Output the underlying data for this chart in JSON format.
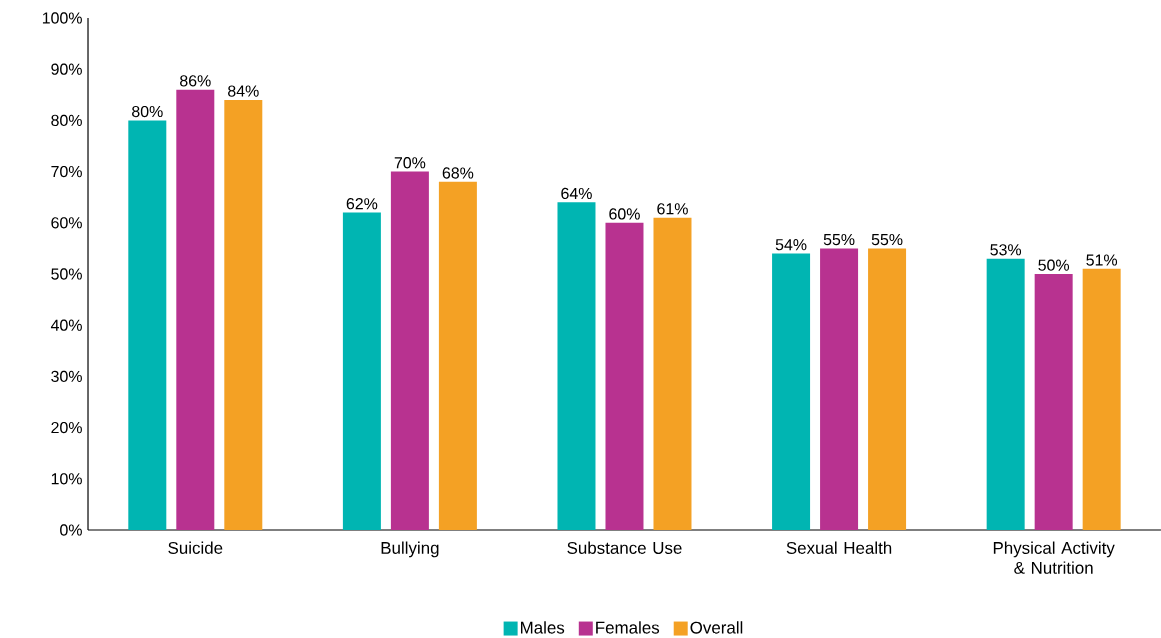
{
  "chart_data": {
    "type": "bar",
    "categories": [
      "Suicide",
      "Bullying",
      "Substance Use",
      "Sexual Health",
      "Physical Activity & Nutrition"
    ],
    "series": [
      {
        "name": "Males",
        "color": "#00b5b2",
        "values": [
          80,
          62,
          64,
          54,
          53
        ],
        "value_labels": [
          "80%",
          "62%",
          "64%",
          "54%",
          "53%"
        ]
      },
      {
        "name": "Females",
        "color": "#b83290",
        "values": [
          86,
          70,
          60,
          55,
          50
        ],
        "value_labels": [
          "86%",
          "70%",
          "60%",
          "55%",
          "50%"
        ]
      },
      {
        "name": "Overall",
        "color": "#f4a124",
        "values": [
          84,
          68,
          61,
          55,
          51
        ],
        "value_labels": [
          "84%",
          "68%",
          "61%",
          "55%",
          "51%"
        ]
      }
    ],
    "ylim": [
      0,
      100
    ],
    "yticks": [
      {
        "value": 0,
        "label": "0%"
      },
      {
        "value": 10,
        "label": "10%"
      },
      {
        "value": 20,
        "label": "20%"
      },
      {
        "value": 30,
        "label": "30%"
      },
      {
        "value": 40,
        "label": "40%"
      },
      {
        "value": 50,
        "label": "50%"
      },
      {
        "value": 60,
        "label": "60%"
      },
      {
        "value": 70,
        "label": "70%"
      },
      {
        "value": 80,
        "label": "80%"
      },
      {
        "value": 90,
        "label": "90%"
      },
      {
        "value": 100,
        "label": "100%"
      }
    ],
    "legend": "bottom"
  }
}
